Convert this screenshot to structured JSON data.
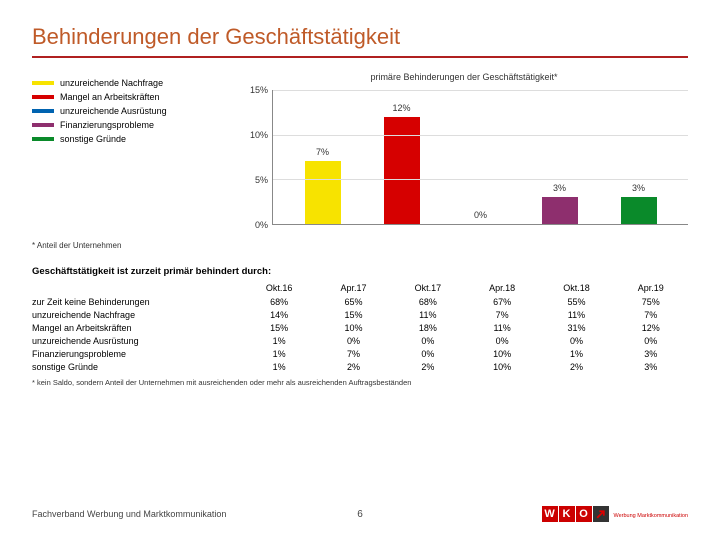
{
  "title": "Behinderungen der Geschäftstätigkeit",
  "chart": {
    "title": "primäre Behinderungen der Geschäftstätigkeit*",
    "ylim": [
      0,
      15
    ],
    "ytick_step": 5,
    "yticks": [
      "0%",
      "5%",
      "10%",
      "15%"
    ],
    "gridline_color": "#dddddd",
    "bars": [
      {
        "value": 7,
        "label": "7%",
        "color": "#f7e300"
      },
      {
        "value": 12,
        "label": "12%",
        "color": "#d60000"
      },
      {
        "value": 0,
        "label": "0%",
        "color": "#0063b0"
      },
      {
        "value": 3,
        "label": "3%",
        "color": "#8e2f6e"
      },
      {
        "value": 3,
        "label": "3%",
        "color": "#0a8a2a"
      }
    ]
  },
  "legend": {
    "items": [
      {
        "label": "unzureichende Nachfrage",
        "color": "#f7e300"
      },
      {
        "label": "Mangel an Arbeitskräften",
        "color": "#d60000"
      },
      {
        "label": "unzureichende Ausrüstung",
        "color": "#0063b0"
      },
      {
        "label": "Finanzierungsprobleme",
        "color": "#8e2f6e"
      },
      {
        "label": "sonstige Gründe",
        "color": "#0a8a2a"
      }
    ],
    "note": "* Anteil der Unternehmen"
  },
  "table": {
    "title": "Geschäftstätigkeit ist zurzeit primär behindert durch:",
    "columns": [
      "Okt.16",
      "Apr.17",
      "Okt.17",
      "Apr.18",
      "Okt.18",
      "Apr.19"
    ],
    "rows": [
      {
        "label": "zur Zeit keine Behinderungen",
        "values": [
          "68%",
          "65%",
          "68%",
          "67%",
          "55%",
          "75%"
        ]
      },
      {
        "label": "unzureichende Nachfrage",
        "values": [
          "14%",
          "15%",
          "11%",
          "7%",
          "11%",
          "7%"
        ]
      },
      {
        "label": "Mangel an Arbeitskräften",
        "values": [
          "15%",
          "10%",
          "18%",
          "11%",
          "31%",
          "12%"
        ]
      },
      {
        "label": "unzureichende Ausrüstung",
        "values": [
          "1%",
          "0%",
          "0%",
          "0%",
          "0%",
          "0%"
        ]
      },
      {
        "label": "Finanzierungsprobleme",
        "values": [
          "1%",
          "7%",
          "0%",
          "10%",
          "1%",
          "3%"
        ]
      },
      {
        "label": "sonstige Gründe",
        "values": [
          "1%",
          "2%",
          "2%",
          "10%",
          "2%",
          "3%"
        ]
      }
    ],
    "note": "* kein Saldo, sondern Anteil der Unternehmen mit ausreichenden oder mehr als ausreichenden Auftragsbeständen"
  },
  "footer": {
    "left": "Fachverband Werbung und Marktkommunikation",
    "page": "6",
    "logo": {
      "letters": [
        "W",
        "K",
        "O"
      ],
      "sub": "Werbung Marktkommunikation"
    }
  },
  "colors": {
    "title": "#bf5a28",
    "divider": "#b02020"
  }
}
